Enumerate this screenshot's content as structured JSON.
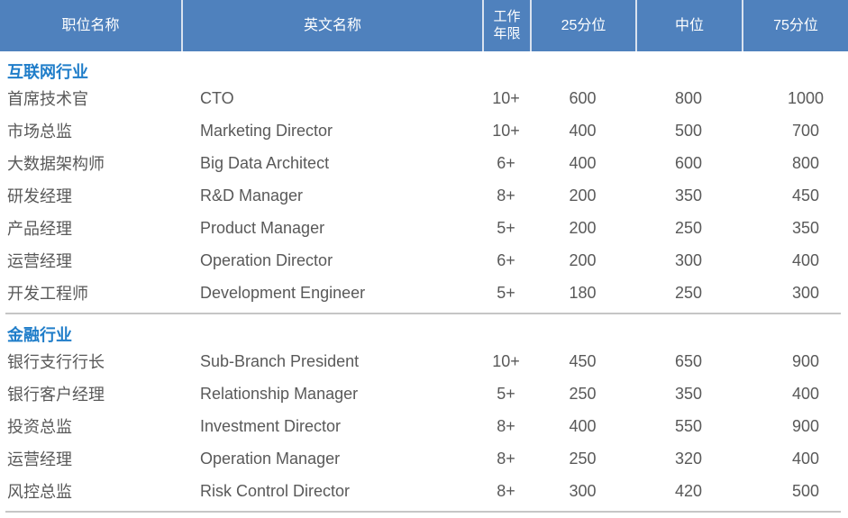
{
  "table": {
    "headers": [
      "职位名称",
      "英文名称",
      "工作年限",
      "25分位",
      "中位",
      "75分位"
    ]
  },
  "sections": [
    {
      "title": "互联网行业",
      "rows": [
        [
          "首席技术官",
          "CTO",
          "10+",
          "600",
          "800",
          "1000"
        ],
        [
          "市场总监",
          "Marketing Director",
          "10+",
          "400",
          "500",
          "700"
        ],
        [
          "大数据架构师",
          "Big Data Architect",
          "6+",
          "400",
          "600",
          "800"
        ],
        [
          "研发经理",
          "R&D Manager",
          "8+",
          "200",
          "350",
          "450"
        ],
        [
          "产品经理",
          "Product Manager",
          "5+",
          "200",
          "250",
          "350"
        ],
        [
          "运营经理",
          "Operation Director",
          "6+",
          "200",
          "300",
          "400"
        ],
        [
          "开发工程师",
          "Development Engineer",
          "5+",
          "180",
          "250",
          "300"
        ]
      ]
    },
    {
      "title": "金融行业",
      "rows": [
        [
          "银行支行行长",
          "Sub-Branch President",
          "10+",
          "450",
          "650",
          "900"
        ],
        [
          "银行客户经理",
          "Relationship Manager",
          "5+",
          "250",
          "350",
          "400"
        ],
        [
          "投资总监",
          "Investment Director",
          "8+",
          "400",
          "550",
          "900"
        ],
        [
          "运营经理",
          "Operation Manager",
          "8+",
          "250",
          "320",
          "400"
        ],
        [
          "风控总监",
          "Risk Control Director",
          "8+",
          "300",
          "420",
          "500"
        ]
      ]
    }
  ],
  "colors": {
    "header_bg": "#4f81bd",
    "header_text": "#ffffff",
    "header_separator": "#d9e2ef",
    "section_title": "#1f7dc9",
    "body_text": "#595959",
    "divider": "#c6c6c6"
  }
}
